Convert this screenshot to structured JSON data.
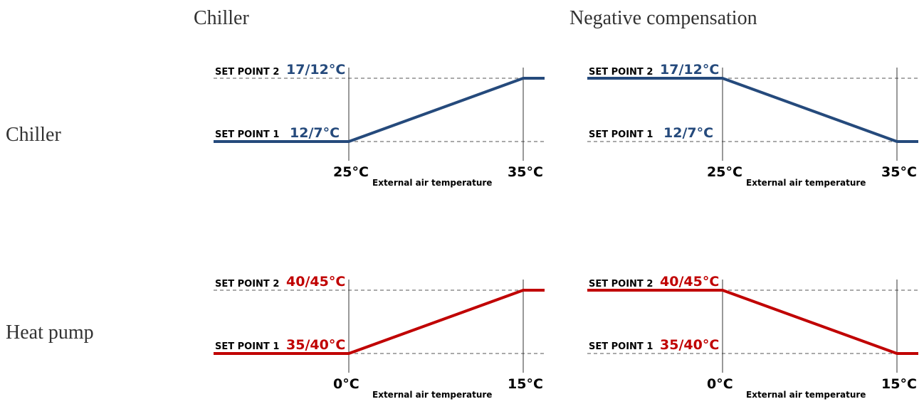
{
  "headers": {
    "col1": "Chiller",
    "col2": "Negative compensation"
  },
  "row_labels": {
    "row1": "Chiller",
    "row2": "Heat pump"
  },
  "colors": {
    "chiller": "#254a7c",
    "heat_pump": "#c00000",
    "dashed": "#555555",
    "guide": "#333333"
  },
  "chart_data": [
    {
      "type": "line",
      "xlabel": "External air temperature",
      "x_ticks": [
        "25°C",
        "35°C"
      ],
      "setpoints": [
        {
          "label": "SET POINT 2",
          "value": "17/12°C"
        },
        {
          "label": "SET POINT 1",
          "value": "12/7°C"
        }
      ],
      "series": [
        {
          "color": "#254a7c",
          "x": [
            15,
            25,
            35,
            38
          ],
          "y": [
            1,
            1,
            2,
            2
          ]
        }
      ]
    },
    {
      "type": "line",
      "xlabel": "External air temperature",
      "x_ticks": [
        "25°C",
        "35°C"
      ],
      "setpoints": [
        {
          "label": "SET POINT 2",
          "value": "17/12°C"
        },
        {
          "label": "SET POINT 1",
          "value": "12/7°C"
        }
      ],
      "series": [
        {
          "color": "#254a7c",
          "x": [
            15,
            25,
            35,
            38
          ],
          "y": [
            2,
            2,
            1,
            1
          ]
        }
      ]
    },
    {
      "type": "line",
      "xlabel": "External air temperature",
      "x_ticks": [
        "0°C",
        "15°C"
      ],
      "setpoints": [
        {
          "label": "SET POINT 2",
          "value": "40/45°C"
        },
        {
          "label": "SET POINT 1",
          "value": "35/40°C"
        }
      ],
      "series": [
        {
          "color": "#c00000",
          "x": [
            -10,
            0,
            15,
            17
          ],
          "y": [
            1,
            1,
            2,
            2
          ]
        }
      ]
    },
    {
      "type": "line",
      "xlabel": "External air temperature",
      "x_ticks": [
        "0°C",
        "15°C"
      ],
      "setpoints": [
        {
          "label": "SET POINT 2",
          "value": "40/45°C"
        },
        {
          "label": "SET POINT 1",
          "value": "35/40°C"
        }
      ],
      "series": [
        {
          "color": "#c00000",
          "x": [
            -10,
            0,
            15,
            17
          ],
          "y": [
            2,
            2,
            1,
            1
          ]
        }
      ]
    }
  ]
}
